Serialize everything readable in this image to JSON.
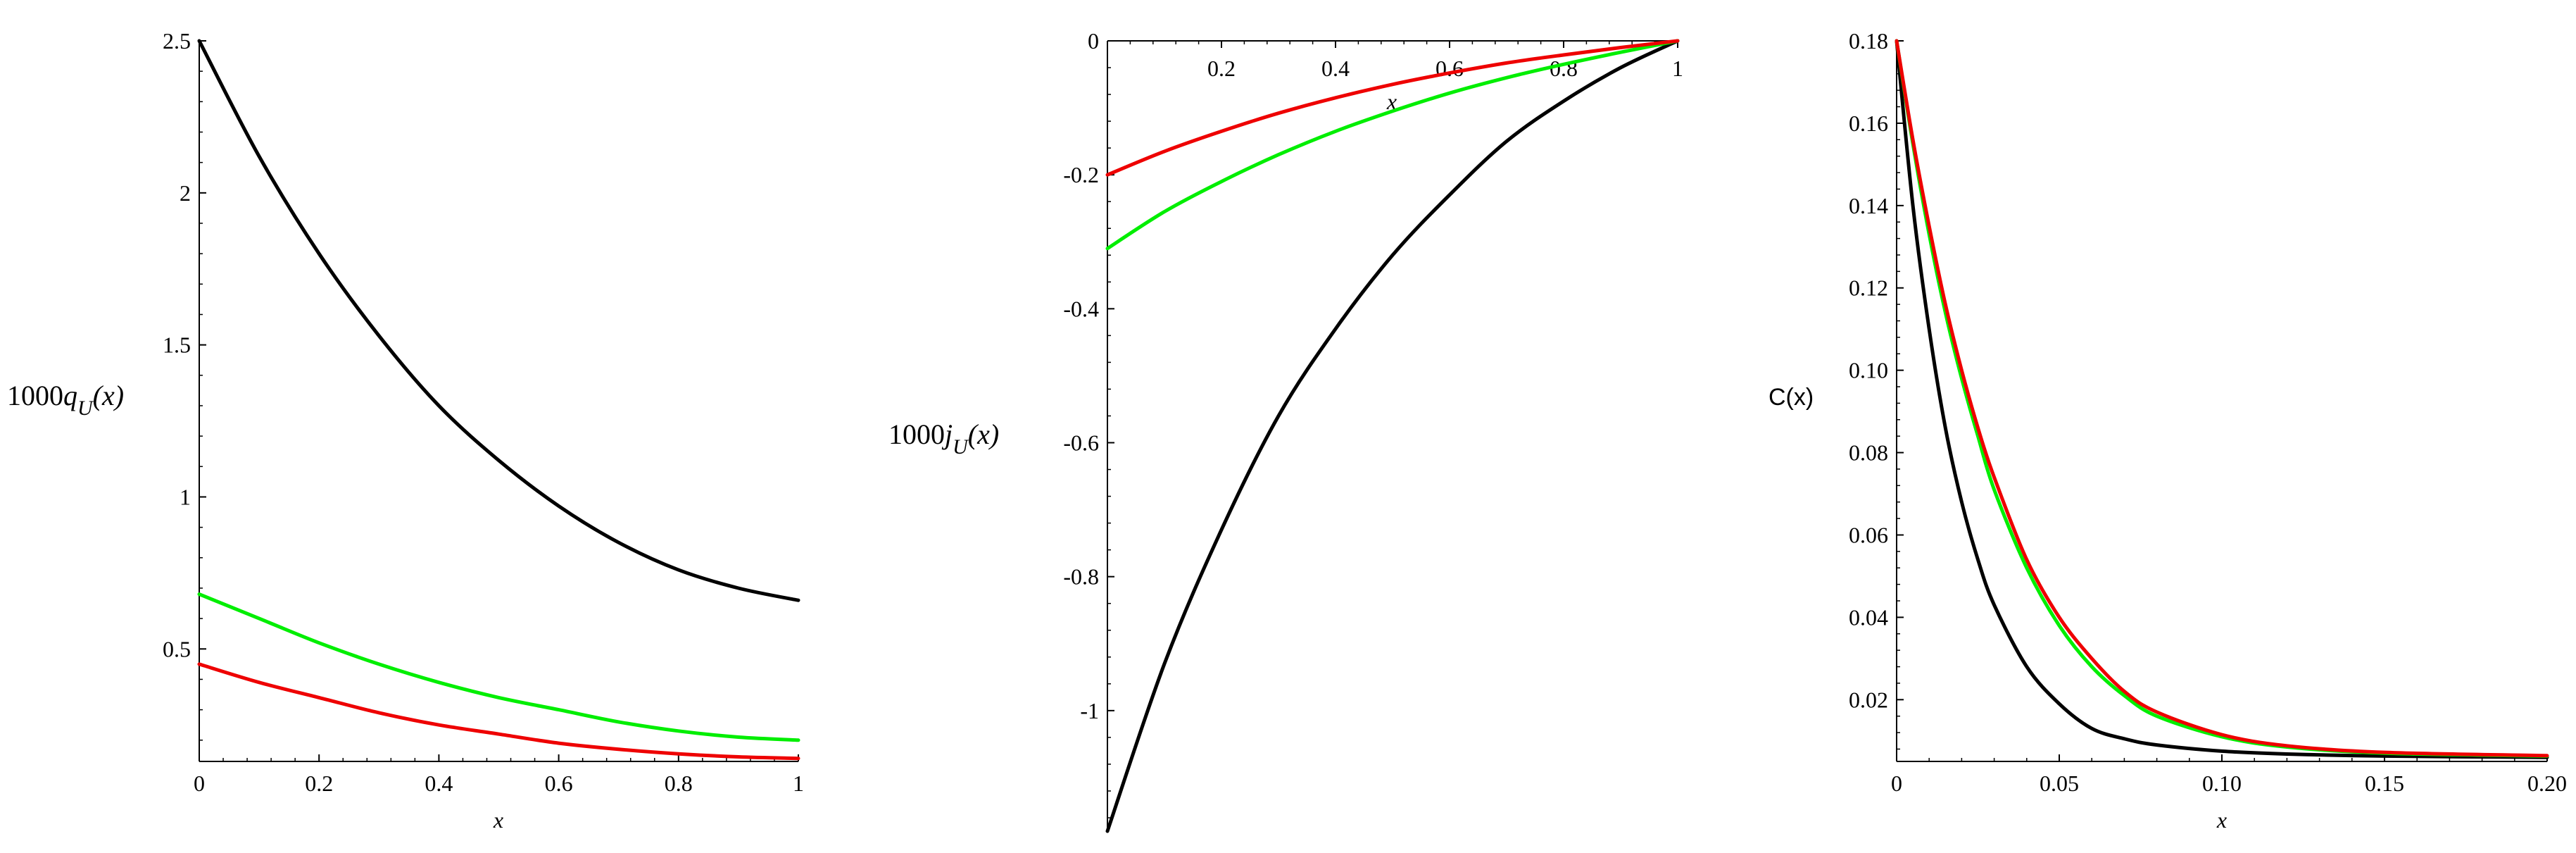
{
  "chart_data": [
    {
      "type": "line",
      "ylabel": "1000q_U(x)",
      "ylabel_parts": {
        "prefix": "1000",
        "var": "q",
        "sub": "U",
        "arg": "(x)"
      },
      "xlabel": "x",
      "xlim": [
        0,
        1
      ],
      "ylim": [
        0.13,
        2.5
      ],
      "xticks": [
        0,
        0.2,
        0.4,
        0.6,
        0.8,
        1
      ],
      "xtick_labels": [
        "0",
        "0.2",
        "0.4",
        "0.6",
        "0.8",
        "1"
      ],
      "yticks": [
        0.5,
        1,
        1.5,
        2,
        2.5
      ],
      "ytick_labels": [
        "0.5",
        "1",
        "1.5",
        "2",
        "2.5"
      ],
      "series": [
        {
          "color": "#000000",
          "x": [
            0,
            0.1,
            0.2,
            0.3,
            0.4,
            0.5,
            0.6,
            0.7,
            0.8,
            0.9,
            1.0
          ],
          "y": [
            2.5,
            2.12,
            1.8,
            1.53,
            1.3,
            1.12,
            0.97,
            0.85,
            0.76,
            0.7,
            0.66
          ]
        },
        {
          "color": "#00ee00",
          "x": [
            0,
            0.1,
            0.2,
            0.3,
            0.4,
            0.5,
            0.6,
            0.7,
            0.8,
            0.9,
            1.0
          ],
          "y": [
            0.68,
            0.6,
            0.52,
            0.45,
            0.39,
            0.34,
            0.3,
            0.26,
            0.23,
            0.21,
            0.2
          ]
        },
        {
          "color": "#ee0000",
          "x": [
            0,
            0.1,
            0.2,
            0.3,
            0.4,
            0.5,
            0.6,
            0.7,
            0.8,
            0.9,
            1.0
          ],
          "y": [
            0.45,
            0.39,
            0.34,
            0.29,
            0.25,
            0.22,
            0.19,
            0.17,
            0.155,
            0.145,
            0.14
          ]
        }
      ]
    },
    {
      "type": "line",
      "ylabel": "1000j_U(x)",
      "ylabel_parts": {
        "prefix": "1000",
        "var": "j",
        "sub": "U",
        "arg": "(x)"
      },
      "xlabel": "x",
      "xlim": [
        0,
        1
      ],
      "ylim": [
        -1.18,
        0
      ],
      "xticks": [
        0.2,
        0.4,
        0.6,
        0.8,
        1
      ],
      "xtick_labels": [
        "0.2",
        "0.4",
        "0.6",
        "0.8",
        "1"
      ],
      "yticks": [
        0,
        -0.2,
        -0.4,
        -0.6,
        -0.8,
        -1
      ],
      "ytick_labels": [
        "0",
        "-0.2",
        "-0.4",
        "-0.6",
        "-0.8",
        "-1"
      ],
      "series": [
        {
          "color": "#000000",
          "x": [
            0,
            0.1,
            0.2,
            0.3,
            0.4,
            0.5,
            0.6,
            0.7,
            0.8,
            0.9,
            1.0
          ],
          "y": [
            -1.18,
            -0.93,
            -0.73,
            -0.56,
            -0.43,
            -0.32,
            -0.23,
            -0.15,
            -0.09,
            -0.04,
            0.0
          ]
        },
        {
          "color": "#00ee00",
          "x": [
            0,
            0.1,
            0.2,
            0.3,
            0.4,
            0.5,
            0.6,
            0.7,
            0.8,
            0.9,
            1.0
          ],
          "y": [
            -0.31,
            -0.255,
            -0.21,
            -0.17,
            -0.135,
            -0.105,
            -0.078,
            -0.055,
            -0.035,
            -0.017,
            0.0
          ]
        },
        {
          "color": "#ee0000",
          "x": [
            0,
            0.1,
            0.2,
            0.3,
            0.4,
            0.5,
            0.6,
            0.7,
            0.8,
            0.9,
            1.0
          ],
          "y": [
            -0.2,
            -0.165,
            -0.135,
            -0.108,
            -0.085,
            -0.065,
            -0.048,
            -0.033,
            -0.021,
            -0.01,
            0.0
          ]
        }
      ]
    },
    {
      "type": "line",
      "ylabel": "C(x)",
      "xlabel": "x",
      "xlim": [
        0,
        0.2
      ],
      "ylim": [
        0.005,
        0.18
      ],
      "xticks": [
        0,
        0.05,
        0.1,
        0.15,
        0.2
      ],
      "xtick_labels": [
        "0",
        "0.05",
        "0.10",
        "0.15",
        "0.20"
      ],
      "yticks": [
        0.02,
        0.04,
        0.06,
        0.08,
        0.1,
        0.12,
        0.14,
        0.16,
        0.18
      ],
      "ytick_labels": [
        "0.02",
        "0.04",
        "0.06",
        "0.08",
        "0.10",
        "0.12",
        "0.14",
        "0.16",
        "0.18"
      ],
      "series": [
        {
          "color": "#000000",
          "x": [
            0,
            0.005,
            0.01,
            0.015,
            0.02,
            0.025,
            0.03,
            0.04,
            0.05,
            0.06,
            0.07,
            0.08,
            0.1,
            0.12,
            0.15,
            0.2
          ],
          "y": [
            0.18,
            0.14,
            0.11,
            0.086,
            0.068,
            0.054,
            0.043,
            0.028,
            0.019,
            0.013,
            0.0105,
            0.009,
            0.0075,
            0.0068,
            0.0063,
            0.006
          ]
        },
        {
          "color": "#00ee00",
          "x": [
            0,
            0.005,
            0.01,
            0.015,
            0.02,
            0.025,
            0.03,
            0.04,
            0.05,
            0.06,
            0.07,
            0.08,
            0.1,
            0.12,
            0.15,
            0.2
          ],
          "y": [
            0.18,
            0.155,
            0.133,
            0.114,
            0.098,
            0.084,
            0.071,
            0.052,
            0.038,
            0.028,
            0.021,
            0.016,
            0.011,
            0.0085,
            0.007,
            0.0063
          ]
        },
        {
          "color": "#ee0000",
          "x": [
            0,
            0.005,
            0.01,
            0.015,
            0.02,
            0.025,
            0.03,
            0.04,
            0.05,
            0.06,
            0.07,
            0.08,
            0.1,
            0.12,
            0.15,
            0.2
          ],
          "y": [
            0.18,
            0.156,
            0.135,
            0.116,
            0.1,
            0.086,
            0.074,
            0.054,
            0.04,
            0.03,
            0.022,
            0.017,
            0.0115,
            0.0088,
            0.0072,
            0.0064
          ]
        }
      ]
    }
  ]
}
